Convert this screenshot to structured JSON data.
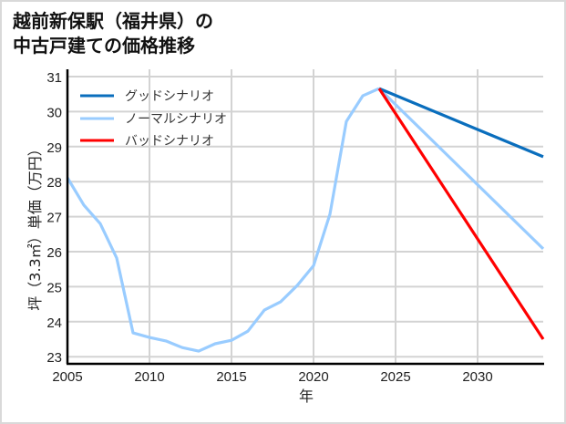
{
  "title": {
    "line1": "越前新保駅（福井県）の",
    "line2": "中古戸建ての価格推移"
  },
  "colors": {
    "good": "#0a6ebd",
    "normal": "#99ccff",
    "bad": "#ff0000",
    "grid": "#d3d3d3",
    "axis": "#000000"
  },
  "chart_data": {
    "type": "line",
    "title": "越前新保駅（福井県）の中古戸建ての価格推移",
    "xlabel": "年",
    "ylabel": "坪（3.3㎡）単価（万円）",
    "xlim": [
      2005,
      2034
    ],
    "ylim": [
      22.8,
      31.2
    ],
    "xticks": [
      2005,
      2010,
      2015,
      2020,
      2025,
      2030
    ],
    "yticks": [
      23,
      24,
      25,
      26,
      27,
      28,
      29,
      30,
      31
    ],
    "grid": true,
    "legend_position": "upper left",
    "series": [
      {
        "name": "ノーマルシナリオ",
        "role": "historical",
        "x": [
          2005,
          2006,
          2007,
          2008,
          2009,
          2010,
          2011,
          2012,
          2013,
          2014,
          2015,
          2016,
          2017,
          2018,
          2019,
          2020,
          2021,
          2022,
          2023,
          2024
        ],
        "y": [
          28.11,
          27.33,
          26.8,
          25.82,
          23.68,
          23.55,
          23.45,
          23.26,
          23.16,
          23.37,
          23.47,
          23.73,
          24.33,
          24.57,
          25.03,
          25.6,
          27.07,
          29.72,
          30.45,
          30.66
        ]
      },
      {
        "name": "グッドシナリオ",
        "role": "projection",
        "x": [
          2024,
          2034
        ],
        "y": [
          30.66,
          28.71
        ]
      },
      {
        "name": "ノーマルシナリオ",
        "role": "projection",
        "x": [
          2024,
          2034
        ],
        "y": [
          30.66,
          26.08
        ]
      },
      {
        "name": "バッドシナリオ",
        "role": "projection",
        "x": [
          2024,
          2034
        ],
        "y": [
          30.66,
          23.5
        ]
      }
    ],
    "legend": [
      "グッドシナリオ",
      "ノーマルシナリオ",
      "バッドシナリオ"
    ]
  },
  "axes": {
    "xlabel": "年",
    "ylabel": "坪（3.3㎡）単価（万円）",
    "xticks": [
      "2005",
      "2010",
      "2015",
      "2020",
      "2025",
      "2030"
    ],
    "yticks": [
      "31",
      "30",
      "29",
      "28",
      "27",
      "26",
      "25",
      "24",
      "23"
    ]
  },
  "legend": {
    "items": [
      {
        "label": "グッドシナリオ"
      },
      {
        "label": "ノーマルシナリオ"
      },
      {
        "label": "バッドシナリオ"
      }
    ]
  }
}
